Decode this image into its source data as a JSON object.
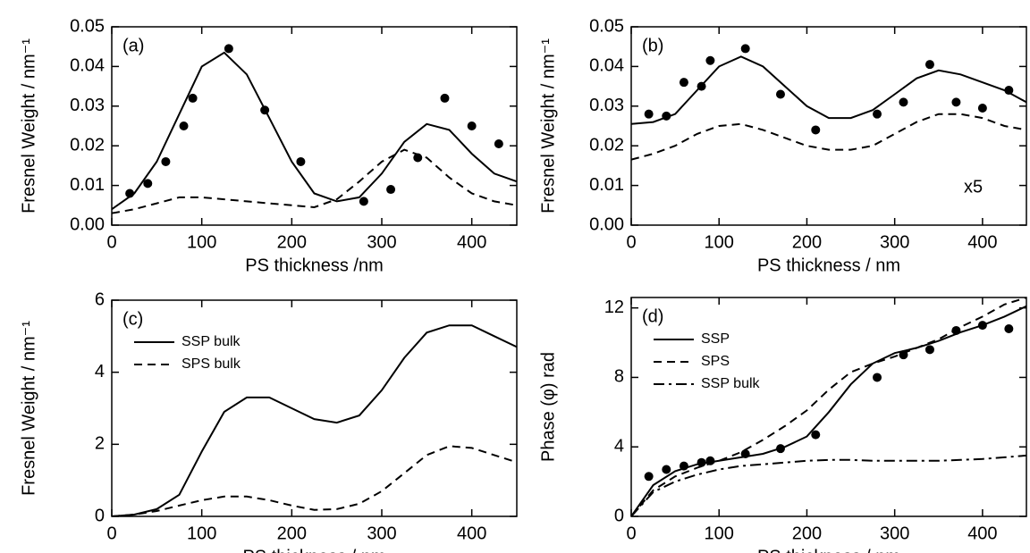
{
  "chart_data": [
    {
      "type": "line",
      "panel_label": "(a)",
      "xlabel": "PS thickness /nm",
      "ylabel": "Fresnel Weight / nm⁻¹",
      "xlim": [
        0,
        450
      ],
      "ylim": [
        0,
        0.05
      ],
      "xticks": [
        0,
        100,
        200,
        300,
        400
      ],
      "yticks": [
        {
          "value": 0,
          "label": "0.00"
        },
        0.01,
        0.02,
        0.03,
        0.04,
        0.05
      ],
      "x": [
        0,
        25,
        50,
        75,
        100,
        125,
        150,
        175,
        200,
        225,
        250,
        275,
        300,
        325,
        350,
        375,
        400,
        425,
        450
      ],
      "series": [
        {
          "color": "#000000",
          "style": "solid",
          "values": [
            0.004,
            0.008,
            0.016,
            0.028,
            0.04,
            0.0435,
            0.038,
            0.027,
            0.016,
            0.008,
            0.006,
            0.007,
            0.013,
            0.021,
            0.0255,
            0.024,
            0.018,
            0.013,
            0.011
          ]
        },
        {
          "color": "#000000",
          "style": "dashed",
          "values": [
            0.003,
            0.004,
            0.0055,
            0.007,
            0.007,
            0.0065,
            0.006,
            0.0055,
            0.005,
            0.0045,
            0.0065,
            0.011,
            0.016,
            0.019,
            0.017,
            0.012,
            0.008,
            0.006,
            0.005
          ]
        }
      ],
      "points": {
        "color": "#000000",
        "x": [
          20,
          40,
          60,
          80,
          90,
          130,
          170,
          210,
          280,
          310,
          340,
          370,
          400,
          430
        ],
        "values": [
          0.008,
          0.0105,
          0.016,
          0.025,
          0.032,
          0.0445,
          0.029,
          0.016,
          0.006,
          0.009,
          0.017,
          0.032,
          0.025,
          0.0205
        ]
      }
    },
    {
      "type": "line",
      "panel_label": "(b)",
      "xlabel": "PS thickness / nm",
      "ylabel": "Fresnel Weight / nm⁻¹",
      "annotation": "x5",
      "xlim": [
        0,
        450
      ],
      "ylim": [
        0,
        0.05
      ],
      "xticks": [
        0,
        100,
        200,
        300,
        400
      ],
      "yticks": [
        {
          "value": 0,
          "label": "0.00"
        },
        0.01,
        0.02,
        0.03,
        0.04,
        0.05
      ],
      "x": [
        0,
        25,
        50,
        75,
        100,
        125,
        150,
        175,
        200,
        225,
        250,
        275,
        300,
        325,
        350,
        375,
        400,
        425,
        450
      ],
      "series": [
        {
          "color": "#000000",
          "style": "solid",
          "values": [
            0.0255,
            0.026,
            0.028,
            0.034,
            0.04,
            0.0425,
            0.04,
            0.035,
            0.03,
            0.027,
            0.027,
            0.029,
            0.033,
            0.037,
            0.039,
            0.038,
            0.036,
            0.034,
            0.031
          ]
        },
        {
          "color": "#000000",
          "style": "dashed",
          "values": [
            0.0165,
            0.018,
            0.02,
            0.023,
            0.025,
            0.0255,
            0.024,
            0.022,
            0.02,
            0.019,
            0.019,
            0.02,
            0.023,
            0.026,
            0.028,
            0.028,
            0.027,
            0.025,
            0.024
          ]
        }
      ],
      "points": {
        "color": "#000000",
        "x": [
          20,
          40,
          60,
          80,
          90,
          130,
          170,
          210,
          280,
          310,
          340,
          370,
          400,
          430
        ],
        "values": [
          0.028,
          0.0275,
          0.036,
          0.035,
          0.0415,
          0.0445,
          0.033,
          0.024,
          0.028,
          0.031,
          0.0405,
          0.031,
          0.0295,
          0.034
        ]
      }
    },
    {
      "type": "line",
      "panel_label": "(c)",
      "xlabel": "PS thickness / nm",
      "ylabel": "Fresnel Weight / nm⁻¹",
      "legend": "upper left",
      "xlim": [
        0,
        450
      ],
      "ylim": [
        0,
        6
      ],
      "xticks": [
        0,
        100,
        200,
        300,
        400
      ],
      "yticks": [
        0,
        2,
        4,
        6
      ],
      "x": [
        0,
        25,
        50,
        75,
        100,
        125,
        150,
        175,
        200,
        225,
        250,
        275,
        300,
        325,
        350,
        375,
        400,
        425,
        450
      ],
      "series": [
        {
          "name": "SSP bulk",
          "color": "#000000",
          "style": "solid",
          "values": [
            0,
            0.05,
            0.2,
            0.6,
            1.8,
            2.9,
            3.3,
            3.3,
            3.0,
            2.7,
            2.6,
            2.8,
            3.5,
            4.4,
            5.1,
            5.3,
            5.3,
            5.0,
            4.7
          ]
        },
        {
          "name": "SPS bulk",
          "color": "#000000",
          "style": "dashed",
          "values": [
            0,
            0.05,
            0.15,
            0.3,
            0.45,
            0.55,
            0.55,
            0.45,
            0.3,
            0.18,
            0.2,
            0.35,
            0.7,
            1.2,
            1.7,
            1.95,
            1.9,
            1.7,
            1.5
          ]
        }
      ]
    },
    {
      "type": "line",
      "panel_label": "(d)",
      "xlabel": "PS thickness / nm",
      "ylabel": "Phase (φ) rad",
      "legend": "upper left",
      "xlim": [
        0,
        450
      ],
      "ylim": [
        0,
        12.6
      ],
      "xticks": [
        0,
        100,
        200,
        300,
        400
      ],
      "yticks": [
        0,
        4,
        8,
        12
      ],
      "x": [
        0,
        25,
        50,
        75,
        100,
        125,
        150,
        175,
        200,
        225,
        250,
        275,
        300,
        325,
        350,
        375,
        400,
        425,
        450
      ],
      "series": [
        {
          "name": "SSP",
          "color": "#000000",
          "style": "solid",
          "values": [
            0,
            1.8,
            2.6,
            3.0,
            3.2,
            3.4,
            3.6,
            4.0,
            4.6,
            6.0,
            7.6,
            8.8,
            9.4,
            9.7,
            10.1,
            10.6,
            11.0,
            11.5,
            12.1
          ]
        },
        {
          "name": "SPS",
          "color": "#000000",
          "style": "dashed",
          "values": [
            0,
            1.5,
            2.3,
            2.8,
            3.2,
            3.7,
            4.4,
            5.2,
            6.1,
            7.3,
            8.3,
            8.8,
            9.2,
            9.7,
            10.2,
            10.9,
            11.5,
            12.2,
            12.6
          ]
        },
        {
          "name": "SSP bulk",
          "color": "#000000",
          "style": "dashdot",
          "values": [
            0,
            1.4,
            2.0,
            2.4,
            2.7,
            2.9,
            3.0,
            3.1,
            3.2,
            3.25,
            3.25,
            3.2,
            3.2,
            3.2,
            3.2,
            3.25,
            3.3,
            3.4,
            3.5
          ]
        }
      ],
      "points": {
        "color": "#000000",
        "x": [
          20,
          40,
          60,
          80,
          90,
          130,
          170,
          210,
          280,
          310,
          340,
          370,
          400,
          430
        ],
        "values": [
          2.3,
          2.7,
          2.9,
          3.1,
          3.2,
          3.6,
          3.9,
          4.7,
          8.0,
          9.3,
          9.6,
          10.7,
          11.0,
          10.8
        ]
      }
    }
  ]
}
